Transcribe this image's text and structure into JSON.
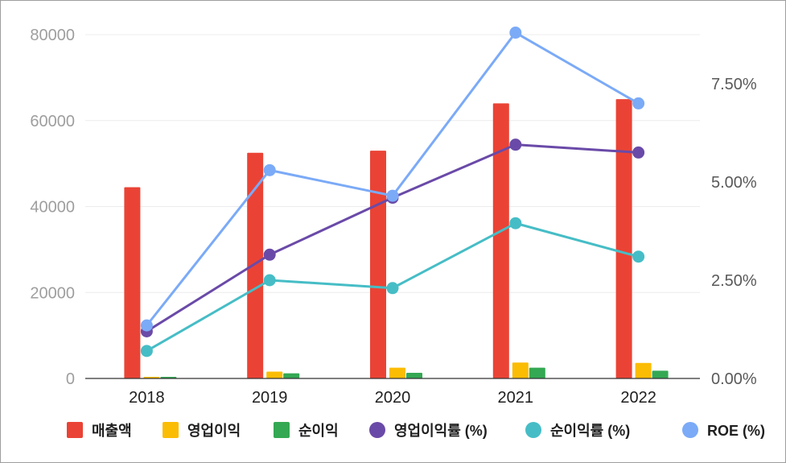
{
  "chart_data": {
    "type": "bar",
    "categories": [
      "2018",
      "2019",
      "2020",
      "2021",
      "2022"
    ],
    "y_left": {
      "ylim": [
        0,
        80000
      ],
      "ticks": [
        "0",
        "20000",
        "40000",
        "60000",
        "80000"
      ]
    },
    "y_right": {
      "ylim": [
        0,
        7.5
      ],
      "ticks": [
        "0.00%",
        "2.50%",
        "5.00%",
        "7.50%"
      ]
    },
    "bar_series": [
      {
        "name": "매출액",
        "color": "#ea4335",
        "values": [
          44500,
          52500,
          53000,
          64000,
          65000
        ]
      },
      {
        "name": "영업이익",
        "color": "#fbbc04",
        "values": [
          300,
          1600,
          2500,
          3700,
          3600
        ]
      },
      {
        "name": "순이익",
        "color": "#34a853",
        "values": [
          300,
          1200,
          1300,
          2500,
          1800
        ]
      }
    ],
    "line_series": [
      {
        "name": "영업이익률 (%)",
        "color": "#6a4aa8",
        "values": [
          1.2,
          3.15,
          4.6,
          5.95,
          5.75
        ]
      },
      {
        "name": "순이익률 (%)",
        "color": "#46bdc6",
        "values": [
          0.7,
          2.5,
          2.3,
          3.95,
          3.1
        ]
      },
      {
        "name": "ROE (%)",
        "color": "#7baaf7",
        "values": [
          1.35,
          5.3,
          4.65,
          8.8,
          7.0
        ]
      }
    ],
    "grid": true,
    "legend": "bottom"
  }
}
